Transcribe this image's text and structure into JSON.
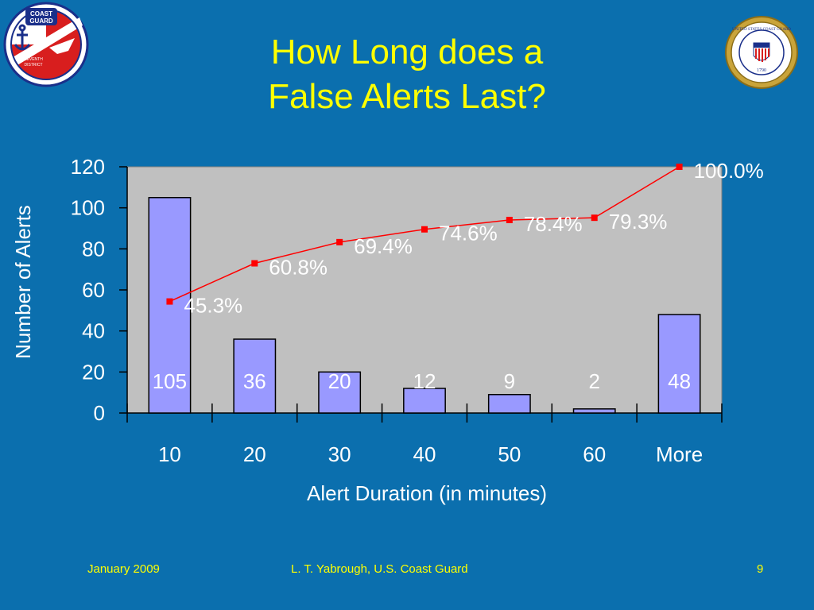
{
  "slide": {
    "title_line1": "How Long does a",
    "title_line2": "False Alerts Last?"
  },
  "logos": {
    "left_text_top": "COAST",
    "left_text_mid": "GUARD",
    "left_text_bottom1": "SEVENTH",
    "left_text_bottom2": "DISTRICT",
    "right_seal_text": "UNITED STATES COAST GUARD",
    "right_seal_year": "1790"
  },
  "footer": {
    "date": "January 2009",
    "author": "L. T. Yabrough, U.S. Coast Guard",
    "page": "9"
  },
  "colors": {
    "background": "#0b6fae",
    "title": "#ffff00",
    "bar_fill": "#9999ff",
    "plot_bg": "#c0c0c0",
    "cumulative_line": "#ff0000"
  },
  "chart_data": {
    "type": "bar",
    "categories": [
      "10",
      "20",
      "30",
      "40",
      "50",
      "60",
      "More"
    ],
    "values": [
      105,
      36,
      20,
      12,
      9,
      2,
      48
    ],
    "bar_labels": [
      "105",
      "36",
      "20",
      "12",
      "9",
      "2",
      "48"
    ],
    "cumulative_percent": [
      45.3,
      60.8,
      69.4,
      74.6,
      78.4,
      79.3,
      100.0
    ],
    "cumulative_labels": [
      "45.3%",
      "60.8%",
      "69.4%",
      "74.6%",
      "78.4%",
      "79.3%",
      "100.0%"
    ],
    "yticks": [
      "0",
      "20",
      "40",
      "60",
      "80",
      "100",
      "120"
    ],
    "ylim": [
      0,
      120
    ],
    "xlabel": "Alert Duration (in minutes)",
    "ylabel": "Number of Alerts",
    "grid": false
  }
}
